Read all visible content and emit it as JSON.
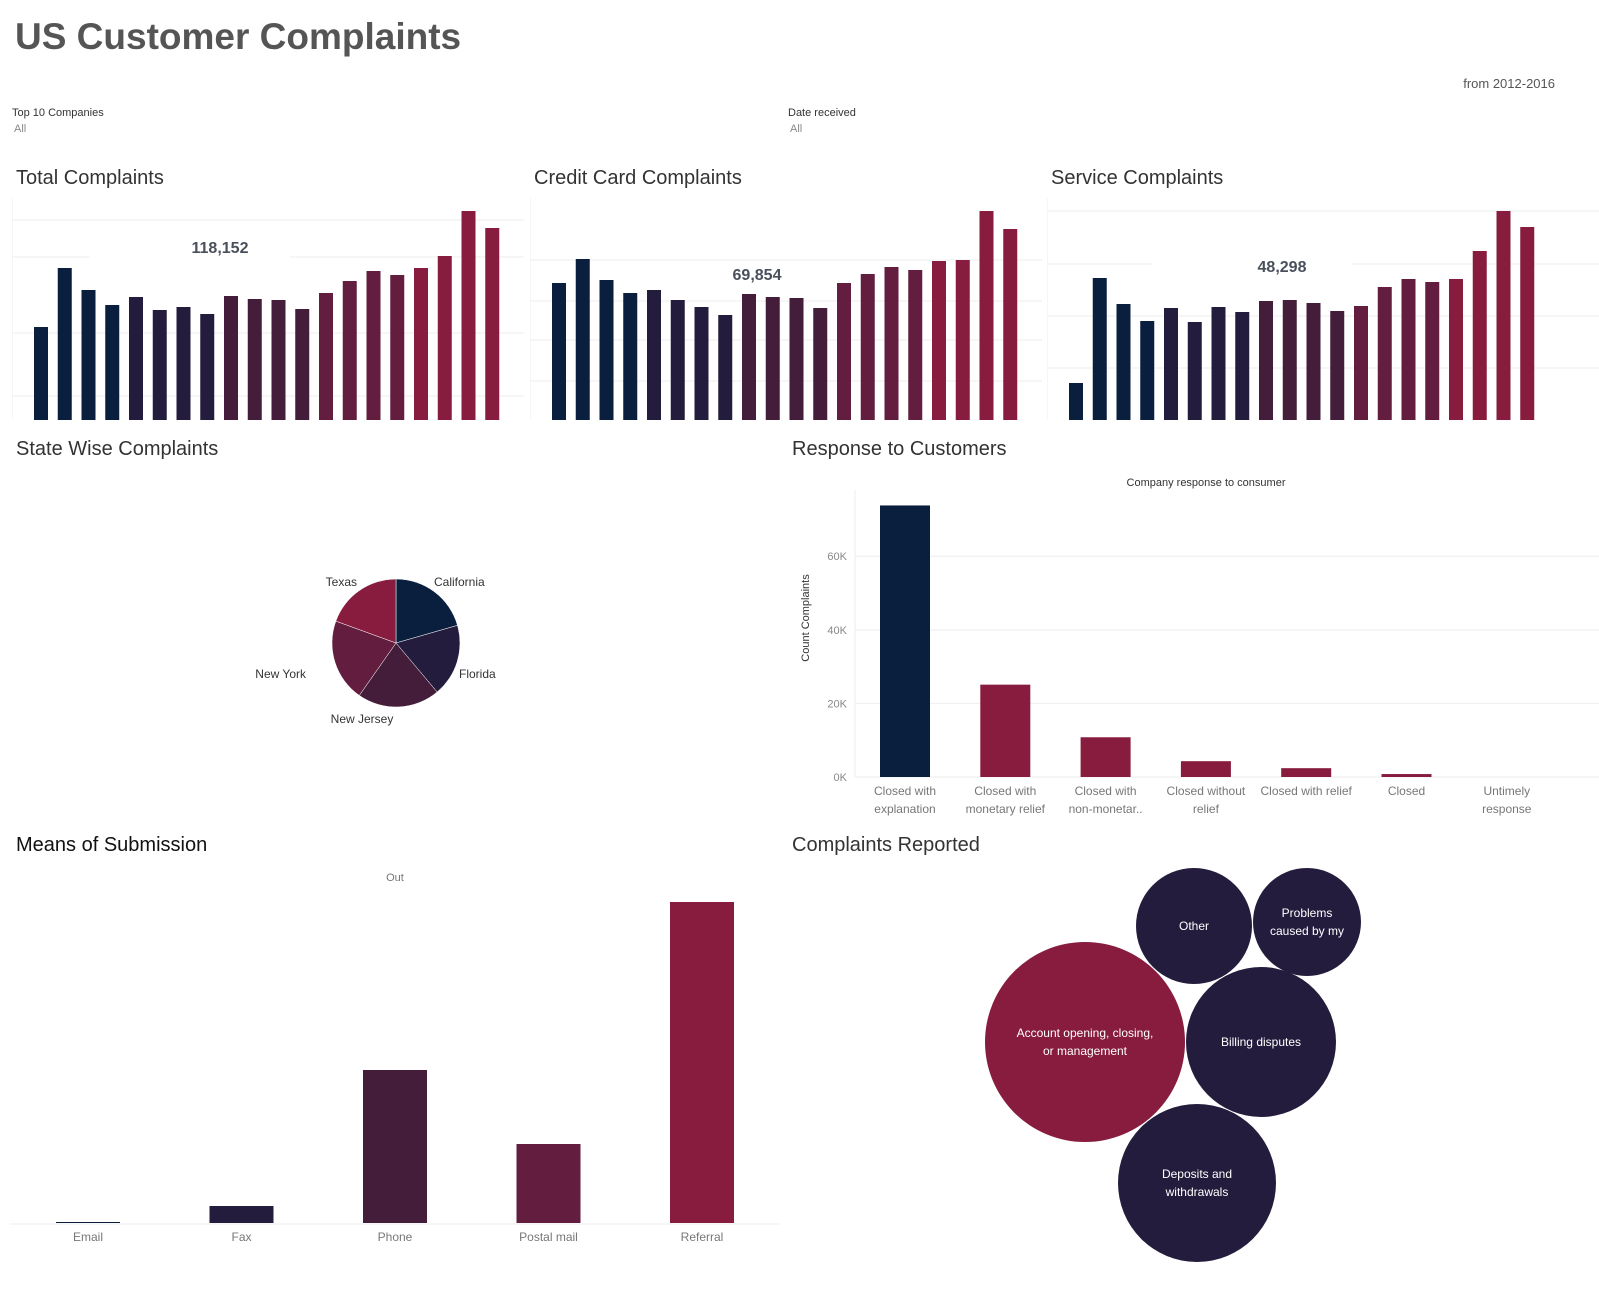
{
  "header": {
    "title": "US Customer Complaints",
    "subtitle": "from 2012-2016"
  },
  "filters": [
    {
      "label": "Top 10 Companies",
      "value": "All"
    },
    {
      "label": "Date received",
      "value": "All"
    }
  ],
  "colors": {
    "c1": "#0a1f3d",
    "c2": "#241c3d",
    "c3": "#431d3a",
    "c4": "#631d3e",
    "c5": "#871c3e",
    "grid": "#eeeeee"
  },
  "panels": {
    "total": "Total Complaints",
    "credit": "Credit Card Complaints",
    "service": "Service Complaints",
    "state": "State Wise Complaints",
    "response": "Response to Customers",
    "means": "Means of Submission",
    "reported": "Complaints Reported"
  },
  "chart_data": [
    {
      "id": "total",
      "type": "bar",
      "title": "Total Complaints",
      "total_label": "118,152",
      "note": "relative heights, no axis shown",
      "ylim": [
        0,
        222
      ],
      "values": [
        93,
        152,
        130,
        115,
        123,
        110,
        113,
        106,
        124,
        121,
        120,
        111,
        127,
        139,
        149,
        145,
        152,
        164,
        209,
        192
      ]
    },
    {
      "id": "credit",
      "type": "bar",
      "title": "Credit Card Complaints",
      "total_label": "69,854",
      "ylim": [
        0,
        222
      ],
      "values": [
        137,
        161,
        140,
        127,
        132,
        120,
        113,
        105,
        126,
        123,
        122,
        112,
        137,
        146,
        153,
        150,
        159,
        160,
        209,
        191
      ]
    },
    {
      "id": "service",
      "type": "bar",
      "title": "Service Complaints",
      "total_label": "48,298",
      "ylim": [
        0,
        222
      ],
      "values": [
        37,
        142,
        116,
        99,
        112,
        98,
        113,
        108,
        119,
        120,
        117,
        109,
        114,
        133,
        141,
        138,
        141,
        169,
        209,
        193
      ]
    },
    {
      "id": "state",
      "type": "pie",
      "title": "State Wise Complaints",
      "labels": [
        "California",
        "Florida",
        "New Jersey",
        "New York",
        "Texas"
      ],
      "values": [
        74,
        66,
        75,
        75,
        70
      ]
    },
    {
      "id": "response",
      "type": "bar",
      "title": "Company response to consumer",
      "ylabel": "Count Complaints",
      "categories": [
        [
          "Closed with",
          "explanation"
        ],
        [
          "Closed with",
          "monetary relief"
        ],
        [
          "Closed with",
          "non-monetar.."
        ],
        [
          "Closed without",
          "relief"
        ],
        [
          "Closed with relief",
          ""
        ],
        [
          "Closed",
          ""
        ],
        [
          "Untimely",
          "response"
        ]
      ],
      "values": [
        73800,
        25100,
        10800,
        4300,
        2400,
        800,
        0
      ],
      "yticks": [
        "0K",
        "20K",
        "40K",
        "60K"
      ],
      "ylim": [
        0,
        78000
      ]
    },
    {
      "id": "means",
      "type": "bar",
      "title": "Means of Submission",
      "header_label": "Out",
      "categories": [
        "Email",
        "Fax",
        "Phone",
        "Postal mail",
        "Referral"
      ],
      "values": [
        1,
        17,
        153,
        79,
        321
      ],
      "ylim": [
        0,
        340
      ]
    },
    {
      "id": "reported",
      "type": "bubble",
      "title": "Complaints Reported",
      "labels": [
        "Account opening, closing, or management",
        "Other",
        "Problems caused by my",
        "Billing disputes",
        "Deposits and withdrawals"
      ],
      "values": [
        100,
        58,
        54,
        75,
        79
      ]
    }
  ]
}
